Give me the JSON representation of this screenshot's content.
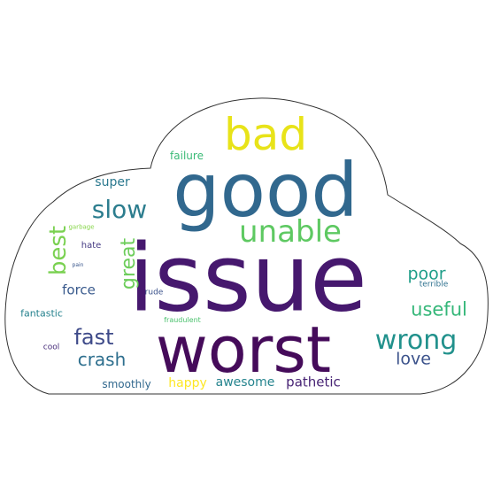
{
  "colors": {
    "background": "#ffffff",
    "outline": "#333333"
  },
  "words": [
    {
      "text": "issue",
      "color": "#46186e"
    },
    {
      "text": "good",
      "color": "#31688e"
    },
    {
      "text": "worst",
      "color": "#450b5a"
    },
    {
      "text": "bad",
      "color": "#e8e319"
    },
    {
      "text": "unable",
      "color": "#5ec962"
    },
    {
      "text": "slow",
      "color": "#2c7d8e"
    },
    {
      "text": "wrong",
      "color": "#21918c"
    },
    {
      "text": "fast",
      "color": "#3e4a89"
    },
    {
      "text": "useful",
      "color": "#35b779"
    },
    {
      "text": "best",
      "color": "#7ad151"
    },
    {
      "text": "great",
      "color": "#6ccd5a"
    },
    {
      "text": "crash",
      "color": "#2e6f8e"
    },
    {
      "text": "love",
      "color": "#3b528b"
    },
    {
      "text": "poor",
      "color": "#1f9e89"
    },
    {
      "text": "force",
      "color": "#38598c"
    },
    {
      "text": "pathetic",
      "color": "#482475"
    },
    {
      "text": "awesome",
      "color": "#25848e"
    },
    {
      "text": "happy",
      "color": "#fde725"
    },
    {
      "text": "super",
      "color": "#2a788e"
    },
    {
      "text": "failure",
      "color": "#3aba76"
    },
    {
      "text": "fantastic",
      "color": "#26828e"
    },
    {
      "text": "smoothly",
      "color": "#31688e"
    },
    {
      "text": "hate",
      "color": "#443a83"
    },
    {
      "text": "cool",
      "color": "#472c7a"
    },
    {
      "text": "rude",
      "color": "#3b528b"
    },
    {
      "text": "terrible",
      "color": "#2d708e"
    },
    {
      "text": "fraudulent",
      "color": "#4ac16d"
    },
    {
      "text": "garbage",
      "color": "#86d549"
    },
    {
      "text": "pain",
      "color": "#39568c"
    }
  ]
}
